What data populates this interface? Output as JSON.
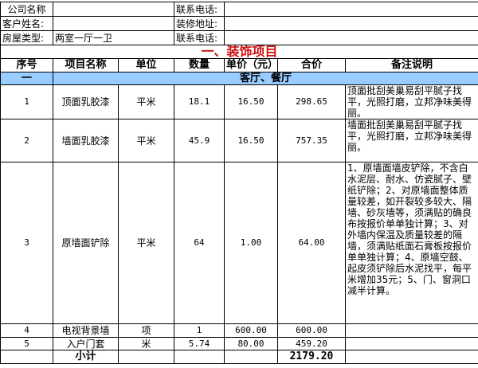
{
  "info": {
    "company_label": "公司名称",
    "company_value": "",
    "phone1_label": "联系电话:",
    "phone1_value": "",
    "customer_label": "客户姓名:",
    "customer_value": "",
    "address_label": "装修地址:",
    "address_value": "",
    "house_label": "房屋类型:",
    "house_value": "两室一厅一卫",
    "phone2_label": "联系电话:",
    "phone2_value": ""
  },
  "section_title": "一、装饰项目",
  "headers": [
    "序号",
    "项目名称",
    "单位",
    "数量",
    "单价（元）",
    "合价",
    "备注说明"
  ],
  "group": {
    "no": "一",
    "name": "客厅、餐厅"
  },
  "rows": [
    {
      "no": "1",
      "name": "顶面乳胶漆",
      "unit": "平米",
      "qty": "18.1",
      "price": "16.50",
      "total": "298.65",
      "note": "顶面批刮美巢易刮平腻子找平，光照打磨，立邦净味美得丽。"
    },
    {
      "no": "2",
      "name": "墙面乳胶漆",
      "unit": "平米",
      "qty": "45.9",
      "price": "16.50",
      "total": "757.35",
      "note": "墙面批刮美巢易刮平腻子找平，光照打磨，立邦净味美得丽。"
    },
    {
      "no": "3",
      "name": "原墙面铲除",
      "unit": "平米",
      "qty": "64",
      "price": "1.00",
      "total": "64.00",
      "note": "1、原墙面墙皮铲除，不含白水泥层、耐水、仿瓷腻子、壁纸铲除；2、对原墙面整体质量较差，如开裂较多较大、隔墙、砂灰墙等，须满贴的确良布按报价单单独计算；3、对外墙内保温及质量较差的隔墙，须满贴纸面石膏板按报价单单独计算；4、原墙空鼓、起皮须铲除后水泥找平，每平米增加35元；5、门、窗洞口减半计算。"
    },
    {
      "no": "4",
      "name": "电视背景墙",
      "unit": "项",
      "qty": "1",
      "price": "600.00",
      "total": "600.00",
      "note": ""
    },
    {
      "no": "5",
      "name": "入户门套",
      "unit": "米",
      "qty": "5.74",
      "price": "80.00",
      "total": "459.20",
      "note": ""
    }
  ],
  "subtotal": {
    "label": "小计",
    "total": "2179.20"
  },
  "colors": {
    "title": "#d01010",
    "section_bg": "#99ccff"
  }
}
